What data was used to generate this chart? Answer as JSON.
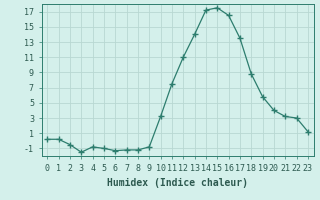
{
  "x": [
    0,
    1,
    2,
    3,
    4,
    5,
    6,
    7,
    8,
    9,
    10,
    11,
    12,
    13,
    14,
    15,
    16,
    17,
    18,
    19,
    20,
    21,
    22,
    23
  ],
  "y": [
    0.2,
    0.2,
    -0.5,
    -1.5,
    -0.8,
    -1.0,
    -1.3,
    -1.2,
    -1.2,
    -0.8,
    3.2,
    7.5,
    11.0,
    14.0,
    17.2,
    17.5,
    16.5,
    13.5,
    8.8,
    5.8,
    4.0,
    3.2,
    3.0,
    1.2
  ],
  "xlabel": "Humidex (Indice chaleur)",
  "xlim": [
    -0.5,
    23.5
  ],
  "ylim": [
    -2,
    18
  ],
  "yticks": [
    -1,
    1,
    3,
    5,
    7,
    9,
    11,
    13,
    15,
    17
  ],
  "xticks": [
    0,
    1,
    2,
    3,
    4,
    5,
    6,
    7,
    8,
    9,
    10,
    11,
    12,
    13,
    14,
    15,
    16,
    17,
    18,
    19,
    20,
    21,
    22,
    23
  ],
  "xtick_labels": [
    "0",
    "1",
    "2",
    "3",
    "4",
    "5",
    "6",
    "7",
    "8",
    "9",
    "10",
    "11",
    "12",
    "13",
    "14",
    "15",
    "16",
    "17",
    "18",
    "19",
    "20",
    "21",
    "22",
    "23"
  ],
  "line_color": "#2d7d6e",
  "marker": "+",
  "marker_size": 4.0,
  "bg_color": "#d4f0eb",
  "grid_color": "#b8d8d2",
  "xlabel_fontsize": 7,
  "tick_fontsize": 6,
  "label_color": "#2d5a50"
}
